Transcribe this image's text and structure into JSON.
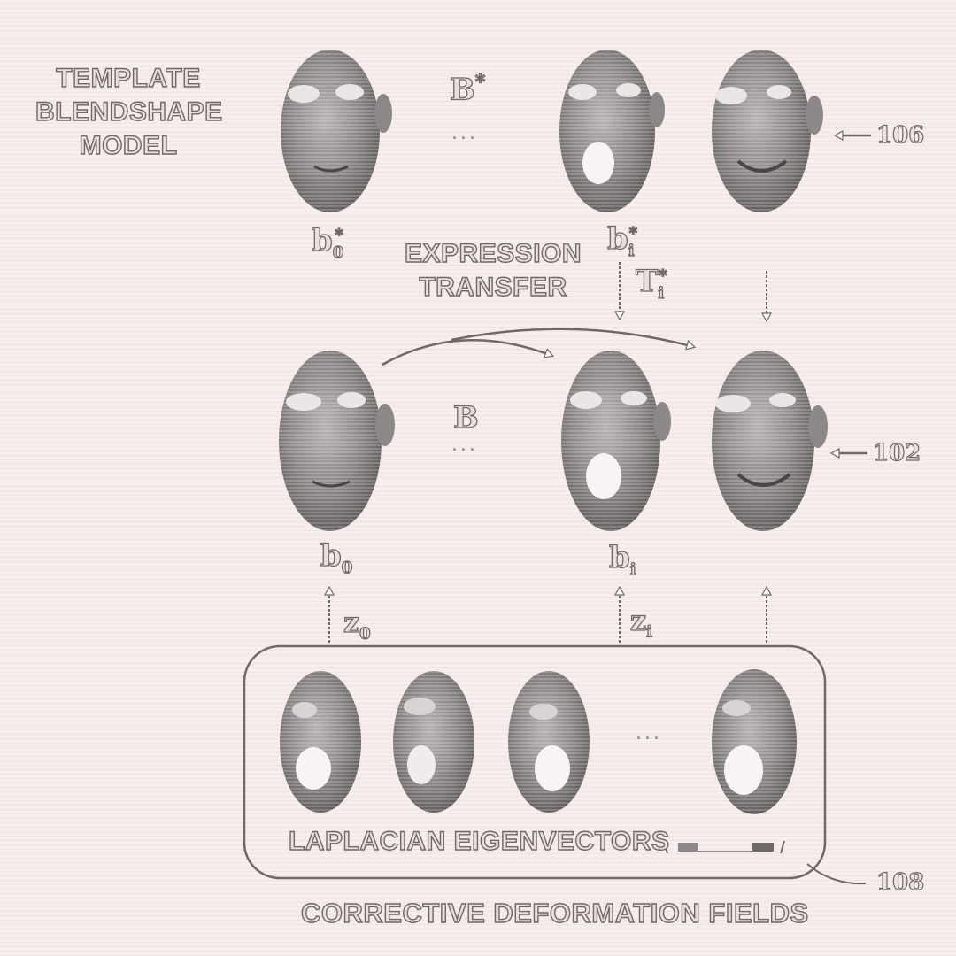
{
  "labels": {
    "template_line1": "TEMPLATE",
    "template_line2": "BLENDSHAPE",
    "template_line3": "MODEL",
    "expression_line1": "EXPRESSION",
    "expression_line2": "TRANSFER",
    "laplacian": "LAPLACIAN EIGENVECTORS",
    "corrective": "CORRECTIVE DEFORMATION FIELDS"
  },
  "symbols": {
    "b_star": "B",
    "b_star_sup": "*",
    "b": "B",
    "b0_star": "b",
    "b0_star_sub": "0",
    "b0_star_sup": "*",
    "bi_star": "b",
    "bi_star_sub": "i",
    "bi_star_sup": "*",
    "b0": "b",
    "b0_sub": "0",
    "bi": "b",
    "bi_sub": "i",
    "ti_star": "T",
    "ti_star_sub": "i",
    "ti_star_sup": "*",
    "z0": "z",
    "z0_sub": "0",
    "zi": "z",
    "zi_sub": "i",
    "ellipsis": "..."
  },
  "refs": {
    "r106": "106",
    "r102": "102",
    "r108": "108"
  }
}
